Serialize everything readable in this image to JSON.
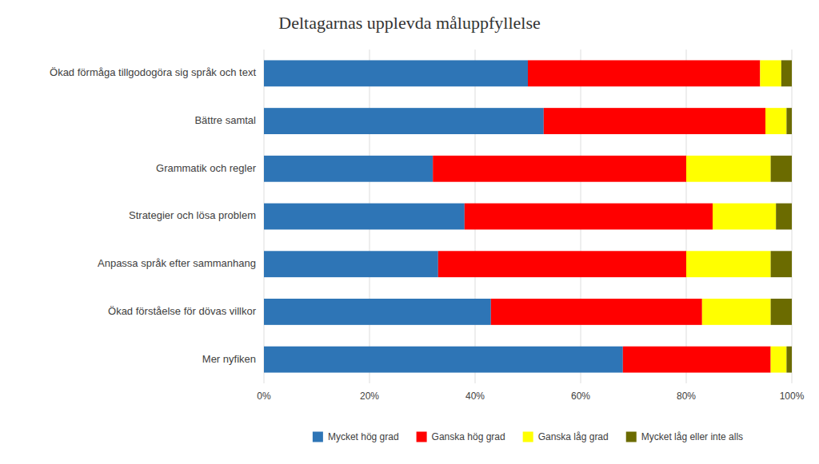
{
  "chart_data": {
    "type": "bar",
    "orientation": "horizontal",
    "stacked": true,
    "title": "Deltagarnas upplevda måluppfyllelse",
    "categories": [
      "Mer nyfiken",
      "Ökad förståelse för dövas villkor",
      "Anpassa språk efter sammanhang",
      "Strategier och lösa problem",
      "Grammatik och regler",
      "Bättre samtal",
      "Ökad förmåga tillgodogöra sig språk och text"
    ],
    "series": [
      {
        "name": "Mycket hög grad",
        "color": "#2E75B6",
        "values": [
          68,
          43,
          33,
          38,
          32,
          53,
          50
        ]
      },
      {
        "name": "Ganska hög grad",
        "color": "#FF0000",
        "values": [
          28,
          40,
          47,
          47,
          48,
          42,
          44
        ]
      },
      {
        "name": "Ganska låg grad",
        "color": "#FFFF00",
        "values": [
          3,
          13,
          16,
          12,
          16,
          4,
          4
        ]
      },
      {
        "name": "Mycket låg eller inte alls",
        "color": "#6B6B00",
        "values": [
          1,
          4,
          4,
          3,
          4,
          1,
          2
        ]
      }
    ],
    "xlim": [
      0,
      100
    ],
    "xticks": [
      {
        "value": 0,
        "label": "0%"
      },
      {
        "value": 20,
        "label": "20%"
      },
      {
        "value": 40,
        "label": "40%"
      },
      {
        "value": 60,
        "label": "60%"
      },
      {
        "value": 80,
        "label": "80%"
      },
      {
        "value": 100,
        "label": "100%"
      }
    ],
    "grid": true,
    "legend": "bottom"
  }
}
